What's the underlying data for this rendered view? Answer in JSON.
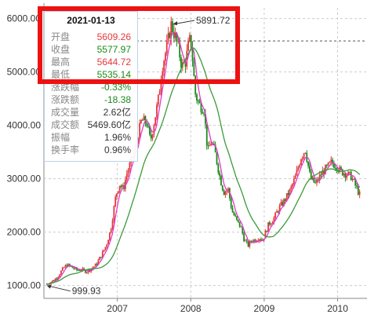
{
  "chart_data": {
    "type": "candlestick",
    "y_ticks": [
      "1000.00",
      "2000.00",
      "3000.00",
      "4000.00",
      "5000.00",
      "6000.00"
    ],
    "x_ticks": [
      "2007",
      "2008",
      "2009",
      "2010"
    ],
    "ylim": [
      760,
      6200
    ],
    "grid": true,
    "annotations": {
      "max_label": "5891.72",
      "min_label": "999.93"
    },
    "reference_line_value": 5580,
    "close_series": [
      [
        2006.06,
        1030
      ],
      [
        2006.13,
        1080
      ],
      [
        2006.2,
        1150
      ],
      [
        2006.27,
        1300
      ],
      [
        2006.33,
        1390
      ],
      [
        2006.4,
        1340
      ],
      [
        2006.47,
        1290
      ],
      [
        2006.53,
        1300
      ],
      [
        2006.6,
        1260
      ],
      [
        2006.67,
        1320
      ],
      [
        2006.73,
        1390
      ],
      [
        2006.8,
        1560
      ],
      [
        2006.87,
        1760
      ],
      [
        2006.93,
        2050
      ],
      [
        2007.0,
        2690
      ],
      [
        2007.05,
        2900
      ],
      [
        2007.1,
        2800
      ],
      [
        2007.15,
        3100
      ],
      [
        2007.2,
        3300
      ],
      [
        2007.25,
        3500
      ],
      [
        2007.3,
        3800
      ],
      [
        2007.35,
        4100
      ],
      [
        2007.42,
        4050
      ],
      [
        2007.47,
        3700
      ],
      [
        2007.52,
        4050
      ],
      [
        2007.58,
        4500
      ],
      [
        2007.63,
        5100
      ],
      [
        2007.7,
        5500
      ],
      [
        2007.75,
        5891.72
      ],
      [
        2007.8,
        5700
      ],
      [
        2007.85,
        5450
      ],
      [
        2007.9,
        5100
      ],
      [
        2007.95,
        5200
      ],
      [
        2008.0,
        5600
      ],
      [
        2008.03,
        5500
      ],
      [
        2008.08,
        4600
      ],
      [
        2008.13,
        4400
      ],
      [
        2008.2,
        4300
      ],
      [
        2008.25,
        3500
      ],
      [
        2008.3,
        3700
      ],
      [
        2008.35,
        3500
      ],
      [
        2008.42,
        3000
      ],
      [
        2008.47,
        2750
      ],
      [
        2008.53,
        2800
      ],
      [
        2008.58,
        2400
      ],
      [
        2008.65,
        2200
      ],
      [
        2008.7,
        2100
      ],
      [
        2008.75,
        1850
      ],
      [
        2008.8,
        1750
      ],
      [
        2008.85,
        1850
      ],
      [
        2008.9,
        1850
      ],
      [
        2008.95,
        1900
      ],
      [
        2009.0,
        1850
      ],
      [
        2009.08,
        2150
      ],
      [
        2009.15,
        2250
      ],
      [
        2009.22,
        2450
      ],
      [
        2009.3,
        2600
      ],
      [
        2009.38,
        2800
      ],
      [
        2009.45,
        3050
      ],
      [
        2009.52,
        3400
      ],
      [
        2009.58,
        3550
      ],
      [
        2009.65,
        3000
      ],
      [
        2009.72,
        2900
      ],
      [
        2009.8,
        3100
      ],
      [
        2009.87,
        3200
      ],
      [
        2009.93,
        3300
      ],
      [
        2010.0,
        3250
      ],
      [
        2010.05,
        3150
      ],
      [
        2010.12,
        3100
      ],
      [
        2010.2,
        3050
      ],
      [
        2010.27,
        2850
      ],
      [
        2010.32,
        2700
      ]
    ]
  },
  "tooltip": {
    "date": "2021-01-13",
    "rows": [
      {
        "label": "开盘",
        "value": "5609.26",
        "color": "#e4393c"
      },
      {
        "label": "收盘",
        "value": "5577.97",
        "color": "#1a8a1a"
      },
      {
        "label": "最高",
        "value": "5644.72",
        "color": "#e4393c"
      },
      {
        "label": "最低",
        "value": "5535.14",
        "color": "#1a8a1a"
      },
      {
        "label": "涨跌幅",
        "value": "-0.33%",
        "color": "#1a8a1a"
      },
      {
        "label": "涨跌额",
        "value": "-18.38",
        "color": "#1a8a1a"
      },
      {
        "label": "成交量",
        "value": "2.62亿",
        "color": "#333333"
      },
      {
        "label": "成交额",
        "value": "5469.60亿",
        "color": "#333333"
      },
      {
        "label": "振幅",
        "value": "1.96%",
        "color": "#333333"
      },
      {
        "label": "换手率",
        "value": "0.96%",
        "color": "#333333"
      }
    ]
  },
  "colors": {
    "up": "#e4393c",
    "down": "#1a8a1a",
    "ma_short": "#e03ac8",
    "ma_long": "#3c9a3c",
    "ref_line": "#555555",
    "highlight": "#ee1111"
  }
}
